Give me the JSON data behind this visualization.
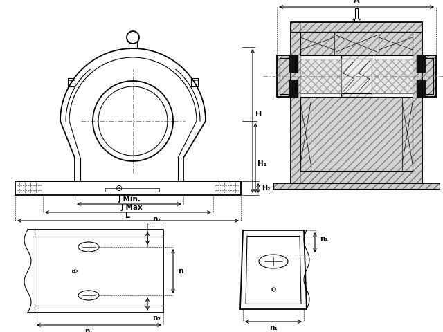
{
  "bg_color": "#ffffff",
  "line_color": "#000000",
  "fig_width": 6.4,
  "fig_height": 4.8,
  "labels": {
    "A": "A",
    "H": "H",
    "H1": "H₁",
    "H2": "H₂",
    "J_min": "J Min.",
    "J_max": "J Max",
    "L": "L",
    "n": "n",
    "n1": "n₁",
    "n2": "n₂"
  }
}
